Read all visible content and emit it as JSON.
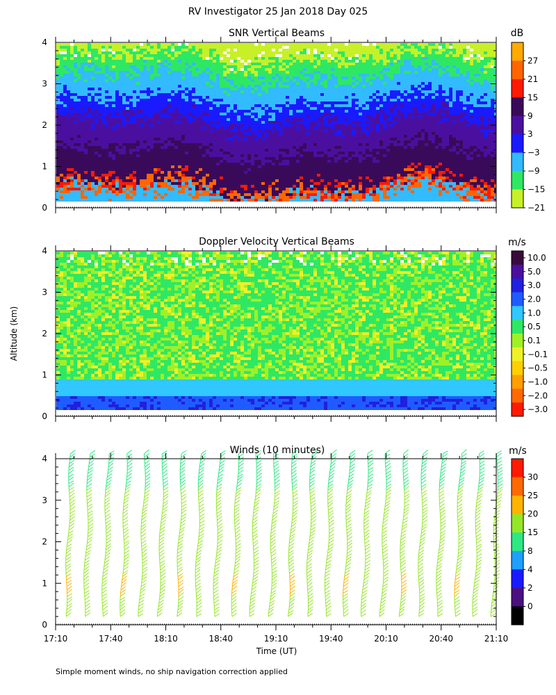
{
  "figure": {
    "title": "RV Investigator  25 Jan 2018 Day 025",
    "ylabel": "Altitude (km)",
    "xlabel": "Time (UT)",
    "footnote": "Simple moment winds, no ship navigation correction applied"
  },
  "chart_data": [
    {
      "type": "heatmap",
      "title": "SNR Vertical Beams",
      "ylim": [
        0,
        4
      ],
      "yticks": [
        "0",
        "1",
        "2",
        "3",
        "4"
      ],
      "xlim": [
        "17:10",
        "21:10"
      ],
      "colorbar": {
        "unit": "dB",
        "tick_labels": [
          "27",
          "21",
          "15",
          "9",
          "3",
          "−3",
          "−9",
          "−15",
          "−21"
        ],
        "colors": [
          "#ffaa00",
          "#ff6600",
          "#ff1a00",
          "#3a0a5a",
          "#4b0fa0",
          "#1a1aff",
          "#33bbff",
          "#2ee864",
          "#c8f028"
        ]
      },
      "layers": [
        {
          "label": "lower bound of echo",
          "altitude_km": 0.2
        },
        {
          "label": "upper bound of echo",
          "altitude_km": 4.0
        },
        {
          "label": "enhanced layer near 0.5 km (≈15–21 dB)",
          "altitude_km_range": [
            0.4,
            0.7
          ]
        },
        {
          "label": "strong echo below ≈2.5 km (3–9 dB)",
          "altitude_km_range": [
            0.2,
            2.5
          ]
        },
        {
          "label": "weak echo above ≈3 km (−9 to −21 dB)",
          "altitude_km_range": [
            3.0,
            4.0
          ]
        }
      ]
    },
    {
      "type": "heatmap",
      "title": "Doppler Velocity Vertical Beams",
      "ylim": [
        0,
        4
      ],
      "yticks": [
        "0",
        "1",
        "2",
        "3",
        "4"
      ],
      "xlim": [
        "17:10",
        "21:10"
      ],
      "colorbar": {
        "unit": "m/s",
        "tick_labels": [
          "10.0",
          "5.0",
          "3.0",
          "2.0",
          "1.0",
          "0.5",
          "0.1",
          "−0.1",
          "−0.5",
          "−1.0",
          "−2.0",
          "−3.0"
        ],
        "colors": [
          "#3a0a3a",
          "#4b0fa0",
          "#2020e0",
          "#1f5cff",
          "#30c8ff",
          "#2ee864",
          "#a0f028",
          "#f0f028",
          "#ffd000",
          "#ffa000",
          "#ff6a00",
          "#ff1a00"
        ]
      },
      "layers": [
        {
          "label": "downward layer near 0.3 km (≈2–3 m/s)",
          "altitude_km_range": [
            0.2,
            0.6
          ]
        },
        {
          "label": "band 0.6–1.0 km (≈1 m/s)",
          "altitude_km_range": [
            0.6,
            1.0
          ]
        },
        {
          "label": "bulk above 1 km (≈0.1–0.5 m/s)",
          "altitude_km_range": [
            1.0,
            4.0
          ]
        }
      ]
    },
    {
      "type": "scatter",
      "title": "Winds (10 minutes)",
      "ylim": [
        0,
        4
      ],
      "yticks": [
        "0",
        "1",
        "2",
        "3",
        "4"
      ],
      "xlim": [
        "17:10",
        "21:10"
      ],
      "xticks": [
        "17:10",
        "17:40",
        "18:10",
        "18:40",
        "19:10",
        "19:40",
        "20:10",
        "20:40",
        "21:10"
      ],
      "colorbar": {
        "unit": "m/s",
        "tick_labels": [
          "30",
          "25",
          "20",
          "15",
          "8",
          "4",
          "2",
          "0"
        ],
        "colors": [
          "#ff1a00",
          "#ff6a00",
          "#ffb400",
          "#96e628",
          "#2ee882",
          "#1ea0ff",
          "#1a1aff",
          "#4b0f80",
          "#000000"
        ]
      },
      "profiles": {
        "count": 24,
        "altitude_km_range": [
          0.2,
          4.2
        ],
        "note": "one wind-barb profile every 10 minutes"
      }
    }
  ]
}
